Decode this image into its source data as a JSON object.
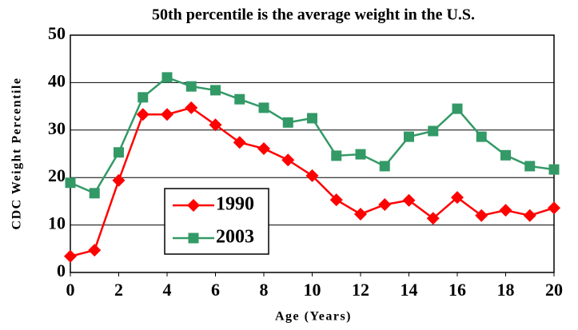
{
  "chart_data": {
    "type": "line",
    "title": "50th percentile is the average weight in the U.S.",
    "x_label": "Age (Years)",
    "y_label": "CDC Weight Percentile",
    "x": [
      0,
      1,
      2,
      3,
      4,
      5,
      6,
      7,
      8,
      9,
      10,
      11,
      12,
      13,
      14,
      15,
      16,
      17,
      18,
      19,
      20
    ],
    "xlim": [
      0,
      20
    ],
    "xticks": [
      0,
      2,
      4,
      6,
      8,
      10,
      12,
      14,
      16,
      18,
      20
    ],
    "ylim": [
      0,
      50
    ],
    "yticks": [
      0,
      10,
      20,
      30,
      40,
      50
    ],
    "grid": true,
    "legend": "lower-left",
    "series": [
      {
        "name": "1990",
        "color": "#ff0000",
        "marker": "diamond",
        "values": [
          3.4,
          4.7,
          19.4,
          33.3,
          33.3,
          34.7,
          31.1,
          27.4,
          26.1,
          23.7,
          20.4,
          15.3,
          12.3,
          14.3,
          15.2,
          11.4,
          15.8,
          12.0,
          13.1,
          12.0,
          13.6
        ]
      },
      {
        "name": "2003",
        "color": "#339966",
        "marker": "square",
        "values": [
          18.9,
          16.7,
          25.3,
          36.9,
          41.1,
          39.2,
          38.4,
          36.5,
          34.7,
          31.6,
          32.5,
          24.6,
          24.9,
          22.4,
          28.6,
          29.8,
          34.5,
          28.6,
          24.7,
          22.4,
          21.7
        ]
      }
    ]
  }
}
